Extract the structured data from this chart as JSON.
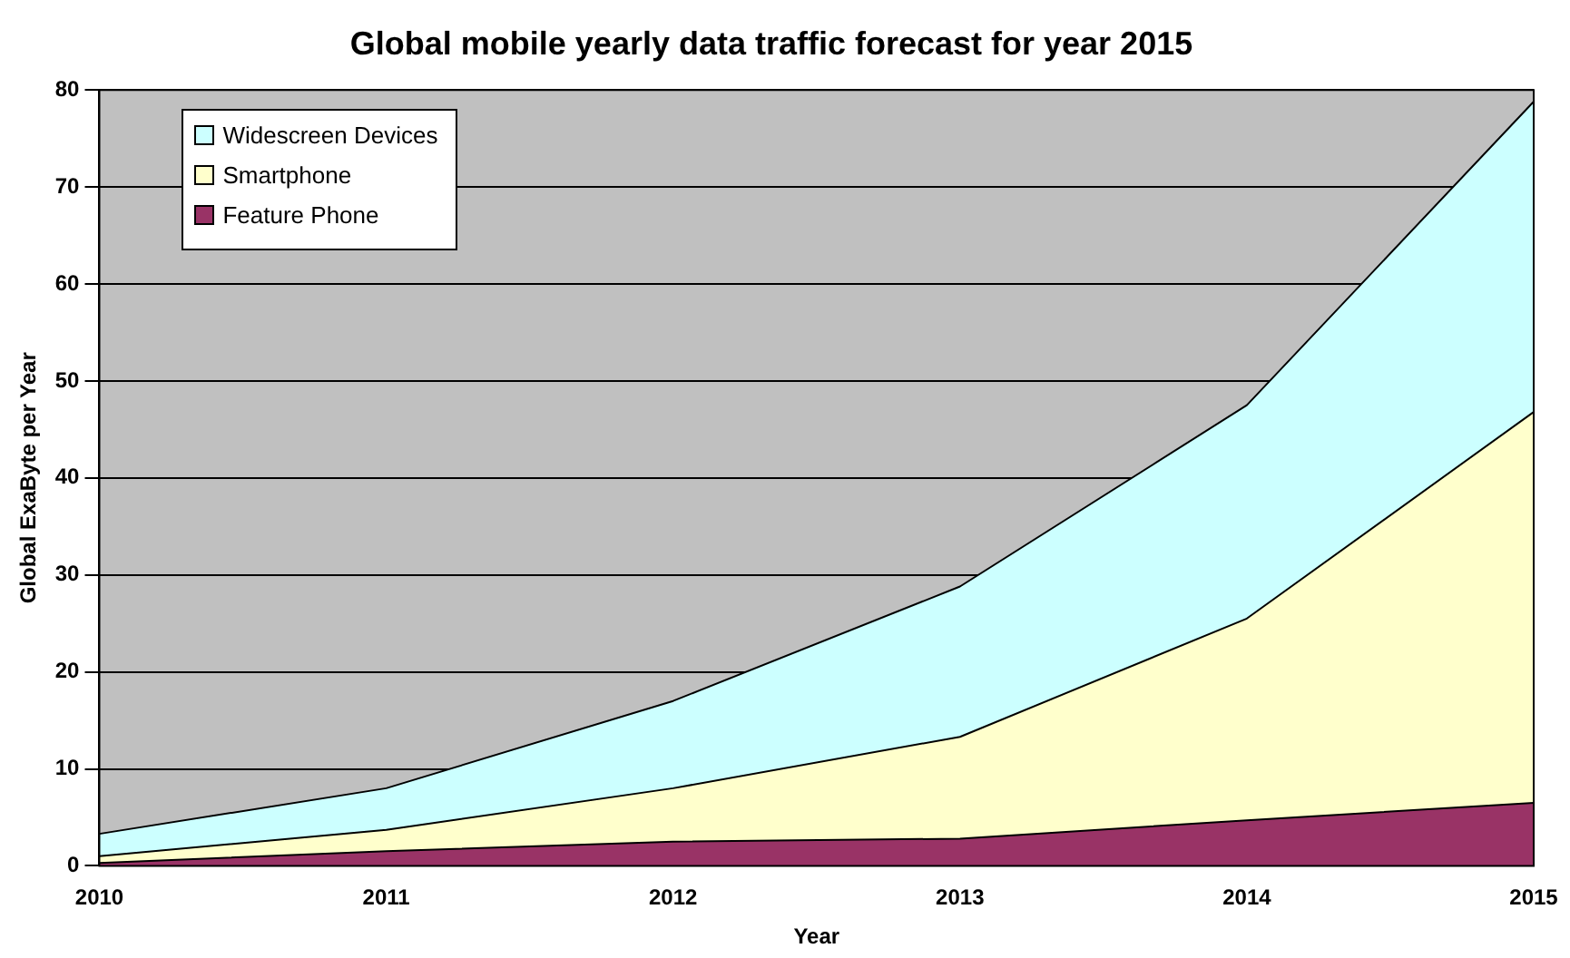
{
  "chart_data": {
    "type": "area",
    "title": "Global mobile yearly data traffic forecast for year 2015",
    "xlabel": "Year",
    "ylabel": "Global ExaByte per Year",
    "categories": [
      "2010",
      "2011",
      "2012",
      "2013",
      "2014",
      "2015"
    ],
    "stacked": true,
    "ylim": [
      0,
      80
    ],
    "yticks": [
      0,
      10,
      20,
      30,
      40,
      50,
      60,
      70,
      80
    ],
    "grid": "y",
    "legend": "top left",
    "series": [
      {
        "name": "Feature Phone",
        "color": "#993366",
        "values": [
          0.3,
          1.5,
          2.5,
          2.8,
          4.7,
          6.5
        ]
      },
      {
        "name": "Smartphone",
        "color": "#ffffcc",
        "values": [
          0.7,
          2.2,
          5.5,
          10.5,
          20.8,
          40.3
        ]
      },
      {
        "name": "Widescreen Devices",
        "color": "#ccffff",
        "values": [
          2.3,
          4.3,
          9,
          15.5,
          22,
          32
        ]
      }
    ]
  }
}
